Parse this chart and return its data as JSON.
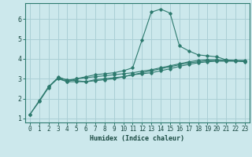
{
  "xlabel": "Humidex (Indice chaleur)",
  "background_color": "#cce8ec",
  "grid_color": "#aacfd5",
  "line_color": "#2d7a6e",
  "xlim": [
    -0.5,
    23.5
  ],
  "ylim": [
    0.8,
    6.8
  ],
  "xticks": [
    0,
    1,
    2,
    3,
    4,
    5,
    6,
    7,
    8,
    9,
    10,
    11,
    12,
    13,
    14,
    15,
    16,
    17,
    18,
    19,
    20,
    21,
    22,
    23
  ],
  "yticks": [
    1,
    2,
    3,
    4,
    5,
    6
  ],
  "curve1_x": [
    0,
    1,
    2,
    3,
    4,
    5,
    6,
    7,
    8,
    9,
    10,
    11,
    12,
    13,
    14,
    15,
    16,
    17,
    18,
    19,
    20,
    21,
    22,
    23
  ],
  "curve1_y": [
    1.2,
    1.85,
    2.55,
    3.05,
    2.85,
    3.0,
    3.1,
    3.2,
    3.25,
    3.3,
    3.4,
    3.55,
    4.95,
    6.35,
    6.5,
    6.3,
    4.65,
    4.4,
    4.2,
    4.15,
    4.1,
    3.95,
    3.9,
    3.85
  ],
  "curve2_x": [
    0,
    1,
    2,
    3,
    4,
    5,
    6,
    7,
    8,
    9,
    10,
    11,
    12,
    13,
    14,
    15,
    16,
    17,
    18,
    19,
    20,
    21,
    22,
    23
  ],
  "curve2_y": [
    1.2,
    1.9,
    2.6,
    3.05,
    2.95,
    2.9,
    2.85,
    2.95,
    3.0,
    3.05,
    3.1,
    3.2,
    3.3,
    3.4,
    3.5,
    3.6,
    3.7,
    3.8,
    3.85,
    3.9,
    3.92,
    3.92,
    3.92,
    3.92
  ],
  "curve3_x": [
    2,
    3,
    4,
    5,
    6,
    7,
    8,
    9,
    10,
    11,
    12,
    13,
    14,
    15,
    16,
    17,
    18,
    19,
    20,
    21,
    22,
    23
  ],
  "curve3_y": [
    2.6,
    3.0,
    2.85,
    2.85,
    2.85,
    2.9,
    2.95,
    3.0,
    3.1,
    3.2,
    3.25,
    3.3,
    3.4,
    3.5,
    3.62,
    3.72,
    3.8,
    3.85,
    3.88,
    3.88,
    3.88,
    3.88
  ],
  "curve4_x": [
    3,
    4,
    5,
    6,
    7,
    8,
    9,
    10,
    11,
    12,
    13,
    14,
    15,
    16,
    17,
    18,
    19,
    20,
    21,
    22,
    23
  ],
  "curve4_y": [
    3.1,
    2.92,
    3.0,
    3.05,
    3.1,
    3.15,
    3.2,
    3.25,
    3.3,
    3.38,
    3.45,
    3.55,
    3.65,
    3.75,
    3.85,
    3.92,
    3.95,
    3.95,
    3.92,
    3.9,
    3.88
  ],
  "tick_fontsize": 5.5,
  "xlabel_fontsize": 6.0
}
